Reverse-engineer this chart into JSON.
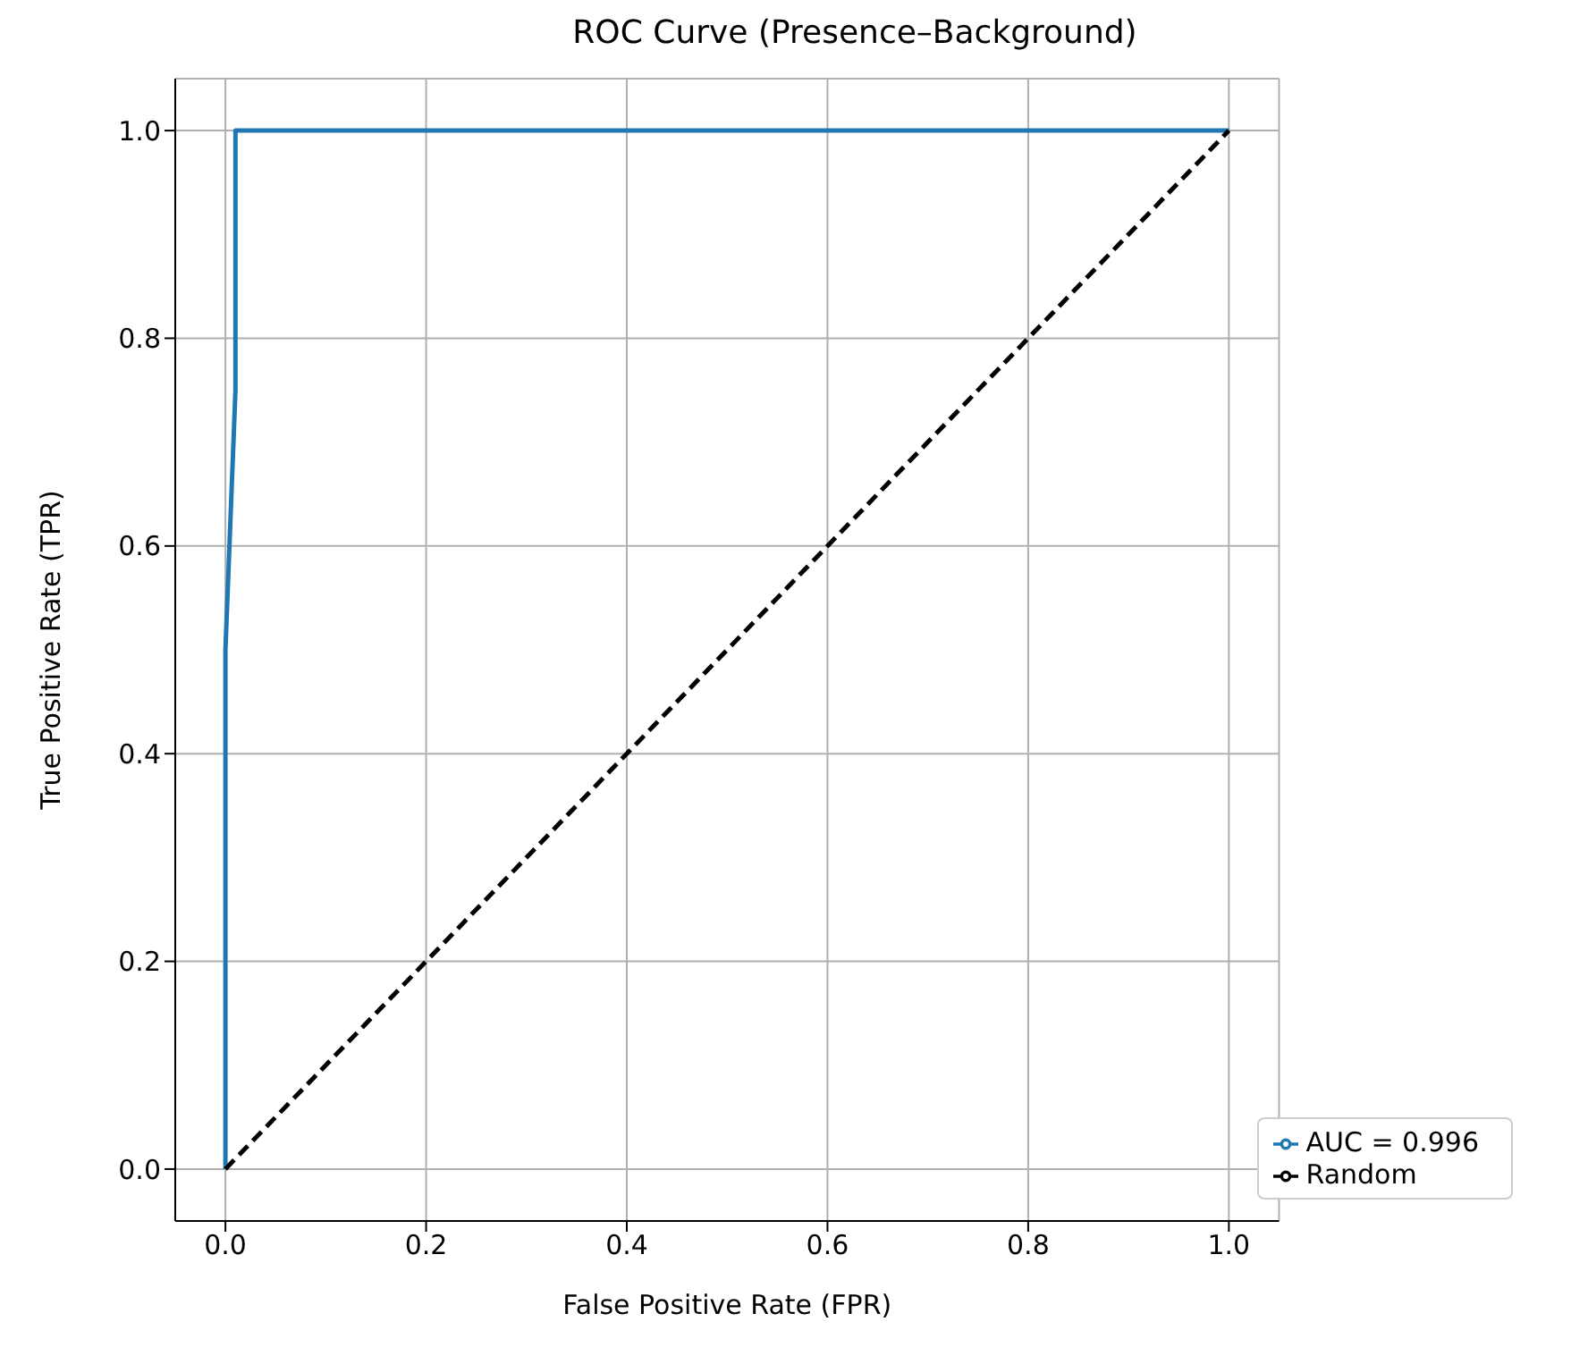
{
  "chart_data": {
    "type": "line",
    "title": "ROC Curve (Presence–Background)",
    "xlabel": "False Positive Rate (FPR)",
    "ylabel": "True Positive Rate (TPR)",
    "series": [
      {
        "name": "AUC = 0.996",
        "color": "#1f77b4",
        "x": [
          0,
          0,
          0.01,
          0.01,
          1
        ],
        "values": [
          0,
          0.5,
          0.75,
          1,
          1
        ],
        "line_style": "solid"
      },
      {
        "name": "Random",
        "color": "#000000",
        "x": [
          0,
          1
        ],
        "values": [
          0,
          1
        ],
        "line_style": "dashed"
      }
    ],
    "xlim": [
      -0.05,
      1.05
    ],
    "ylim": [
      -0.05,
      1.05
    ],
    "xticks": [
      {
        "value": 0,
        "label": "0.0"
      },
      {
        "value": 0.2,
        "label": "0.2"
      },
      {
        "value": 0.4,
        "label": "0.4"
      },
      {
        "value": 0.6,
        "label": "0.6"
      },
      {
        "value": 0.8,
        "label": "0.8"
      },
      {
        "value": 1,
        "label": "1.0"
      }
    ],
    "yticks": [
      {
        "value": 0,
        "label": "0.0"
      },
      {
        "value": 0.2,
        "label": "0.2"
      },
      {
        "value": 0.4,
        "label": "0.4"
      },
      {
        "value": 0.6,
        "label": "0.6"
      },
      {
        "value": 0.8,
        "label": "0.8"
      },
      {
        "value": 1,
        "label": "1.0"
      }
    ],
    "grid": true,
    "legend": "bottom right",
    "marker": "none"
  }
}
